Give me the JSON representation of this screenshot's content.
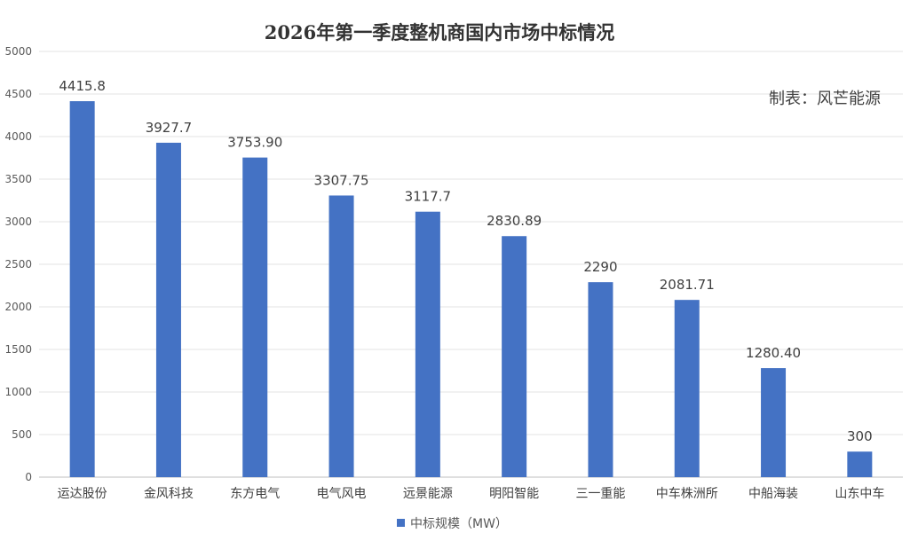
{
  "chart_data": {
    "type": "bar",
    "title": "2026年第一季度整机商国内市场中标情况",
    "annotation": "制表：风芒能源",
    "categories": [
      "运达股份",
      "金风科技",
      "东方电气",
      "电气风电",
      "远景能源",
      "明阳智能",
      "三一重能",
      "中车株洲所",
      "中船海装",
      "山东中车"
    ],
    "series": [
      {
        "name": "中标规模（MW）",
        "values": [
          4415.8,
          3927.7,
          3753.9,
          3307.75,
          3117.7,
          2830.89,
          2290,
          2081.71,
          1280.4,
          300
        ],
        "labels": [
          "4415.8",
          "3927.7",
          "3753.90",
          "3307.75",
          "3117.7",
          "2830.89",
          "2290",
          "2081.71",
          "1280.40",
          "300"
        ],
        "color": "#4472C4"
      }
    ],
    "ylim": [
      0,
      5000
    ],
    "yticks": [
      "0",
      "500",
      "1000",
      "1500",
      "2000",
      "2500",
      "3000",
      "3500",
      "4000",
      "4500",
      "5000"
    ],
    "grid": true,
    "legend_position": "bottom"
  }
}
